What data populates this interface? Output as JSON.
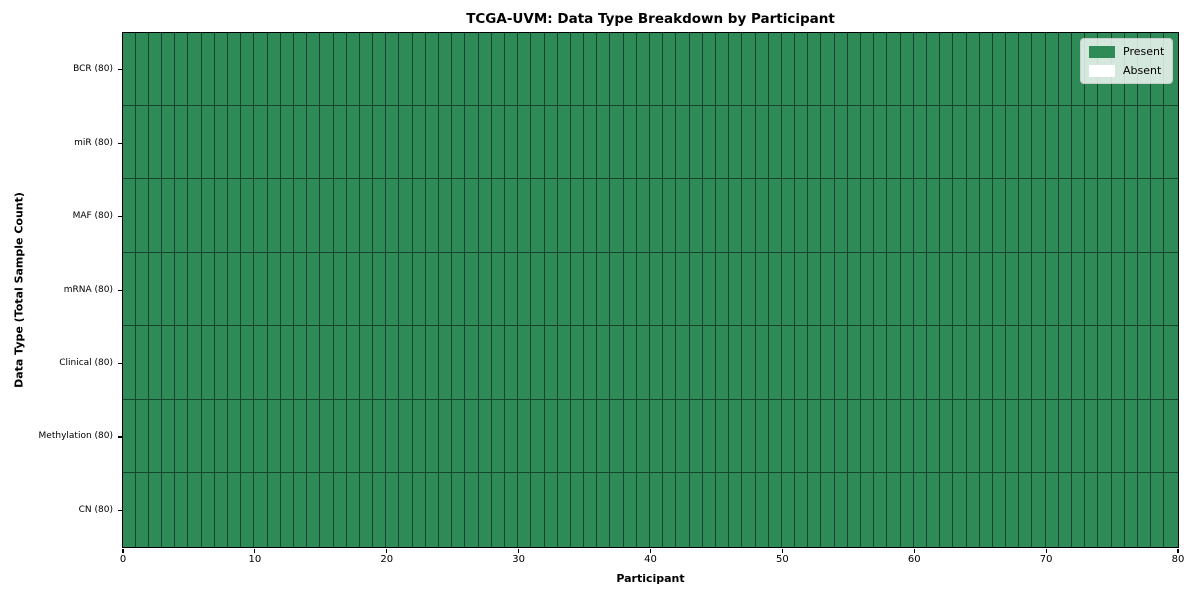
{
  "figure": {
    "title": "TCGA-UVM: Data Type Breakdown by Participant",
    "xlabel": "Participant",
    "ylabel": "Data Type (Total Sample Count)"
  },
  "legend": {
    "position": "upper-right",
    "items": [
      {
        "label": "Present",
        "color": "#2e8b57"
      },
      {
        "label": "Absent",
        "color": "#ffffff"
      }
    ]
  },
  "chart_data": {
    "type": "heatmap",
    "title": "TCGA-UVM: Data Type Breakdown by Participant",
    "xlabel": "Participant",
    "ylabel": "Data Type (Total Sample Count)",
    "xlim": [
      0,
      80
    ],
    "x_ticks": [
      0,
      10,
      20,
      30,
      40,
      50,
      60,
      70,
      80
    ],
    "n_participants": 80,
    "categories_top_to_bottom": [
      "BCR (80)",
      "miR (80)",
      "MAF (80)",
      "mRNA (80)",
      "Clinical (80)",
      "Methylation (80)",
      "CN (80)"
    ],
    "series": [
      {
        "name": "BCR (80)",
        "present": 80,
        "absent": 0
      },
      {
        "name": "miR (80)",
        "present": 80,
        "absent": 0
      },
      {
        "name": "MAF (80)",
        "present": 80,
        "absent": 0
      },
      {
        "name": "mRNA (80)",
        "present": 80,
        "absent": 0
      },
      {
        "name": "Clinical (80)",
        "present": 80,
        "absent": 0
      },
      {
        "name": "Methylation (80)",
        "present": 80,
        "absent": 0
      },
      {
        "name": "CN (80)",
        "present": 80,
        "absent": 0
      }
    ],
    "legend_entries": [
      "Present",
      "Absent"
    ],
    "legend_position": "upper right",
    "grid": false,
    "colors": {
      "present": "#2e8b57",
      "absent": "#ffffff",
      "cell_border": "rgba(0,0,0,0.50)",
      "spine": "#000000",
      "legend_border": "#cccccc"
    }
  }
}
